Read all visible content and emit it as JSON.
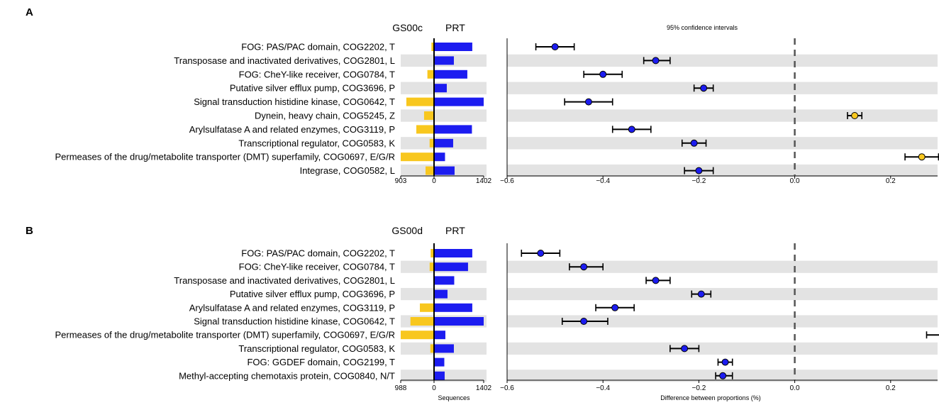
{
  "chart_data": [
    {
      "panel": "A",
      "type": "bar+errorbar",
      "left_header": "GS00c",
      "right_header": "PRT",
      "ci_title": "95% confidence intervals",
      "bar_ticks": {
        "left": "903",
        "zero": "0",
        "right": "1402"
      },
      "bar_range": {
        "left_max": 903,
        "right_max": 1402
      },
      "xlim": [
        -0.6,
        0.3
      ],
      "x_ticks": [
        -0.6,
        -0.4,
        -0.2,
        0.0,
        0.2
      ],
      "x_tick_labels": [
        "−0.6",
        "−0.4",
        "−0.2",
        "0.0",
        "0.2"
      ],
      "xlabel": "",
      "bar_xlabel": "",
      "colors": {
        "left": "#F8C71E",
        "right": "#1C1CF0",
        "row_band": "#E3E3E3"
      },
      "rows": [
        {
          "label": "FOG: PAS/PAC domain, COG2202, T",
          "left": 70,
          "right": 1080,
          "diff": -0.5,
          "ci": [
            -0.54,
            -0.46
          ]
        },
        {
          "label": "Transposase and inactivated derivatives, COG2801, L",
          "left": 15,
          "right": 560,
          "diff": -0.29,
          "ci": [
            -0.315,
            -0.26
          ]
        },
        {
          "label": "FOG: CheY-like receiver, COG0784, T",
          "left": 180,
          "right": 940,
          "diff": -0.4,
          "ci": [
            -0.44,
            -0.36
          ]
        },
        {
          "label": "Putative silver efflux pump, COG3696, P",
          "left": 10,
          "right": 360,
          "diff": -0.19,
          "ci": [
            -0.21,
            -0.17
          ]
        },
        {
          "label": "Signal transduction histidine kinase, COG0642, T",
          "left": 750,
          "right": 1402,
          "diff": -0.43,
          "ci": [
            -0.48,
            -0.38
          ]
        },
        {
          "label": "Dynein, heavy chain, COG5245, Z",
          "left": 270,
          "right": 0,
          "diff": 0.125,
          "ci": [
            0.11,
            0.14
          ]
        },
        {
          "label": "Arylsulfatase A and related enzymes, COG3119, P",
          "left": 480,
          "right": 1070,
          "diff": -0.34,
          "ci": [
            -0.38,
            -0.3
          ]
        },
        {
          "label": "Transcriptional regulator, COG0583, K",
          "left": 120,
          "right": 540,
          "diff": -0.21,
          "ci": [
            -0.235,
            -0.185
          ]
        },
        {
          "label": "Permeases of the drug/metabolite transporter (DMT) superfamily, COG0697, E/G/R",
          "left": 903,
          "right": 310,
          "diff": 0.265,
          "ci": [
            0.23,
            0.3
          ]
        },
        {
          "label": "Integrase, COG0582, L",
          "left": 230,
          "right": 580,
          "diff": -0.2,
          "ci": [
            -0.23,
            -0.17
          ]
        }
      ]
    },
    {
      "panel": "B",
      "type": "bar+errorbar",
      "left_header": "GS00d",
      "right_header": "PRT",
      "ci_title": "",
      "bar_ticks": {
        "left": "988",
        "zero": "0",
        "right": "1402"
      },
      "bar_range": {
        "left_max": 988,
        "right_max": 1402
      },
      "xlim": [
        -0.6,
        0.35
      ],
      "x_ticks": [
        -0.6,
        -0.4,
        -0.2,
        0.0,
        0.2
      ],
      "x_tick_labels": [
        "−0.6",
        "−0.4",
        "−0.2",
        "0.0",
        "0.2"
      ],
      "xlabel": "Difference between proportions (%)",
      "bar_xlabel": "Sequences",
      "colors": {
        "left": "#F8C71E",
        "right": "#1C1CF0",
        "row_band": "#E3E3E3"
      },
      "rows": [
        {
          "label": "FOG: PAS/PAC domain, COG2202, T",
          "left": 100,
          "right": 1080,
          "diff": -0.53,
          "ci": [
            -0.57,
            -0.49
          ]
        },
        {
          "label": "FOG: CheY-like receiver, COG0784, T",
          "left": 130,
          "right": 960,
          "diff": -0.44,
          "ci": [
            -0.47,
            -0.4
          ]
        },
        {
          "label": "Transposase and inactivated derivatives, COG2801, L",
          "left": 10,
          "right": 570,
          "diff": -0.29,
          "ci": [
            -0.31,
            -0.26
          ]
        },
        {
          "label": "Putative silver efflux pump, COG3696, P",
          "left": 5,
          "right": 380,
          "diff": -0.195,
          "ci": [
            -0.215,
            -0.175
          ]
        },
        {
          "label": "Arylsulfatase A and related enzymes, COG3119, P",
          "left": 420,
          "right": 1080,
          "diff": -0.375,
          "ci": [
            -0.415,
            -0.335
          ]
        },
        {
          "label": "Signal transduction histidine kinase, COG0642, T",
          "left": 700,
          "right": 1402,
          "diff": -0.44,
          "ci": [
            -0.485,
            -0.39
          ]
        },
        {
          "label": "Permeases of the drug/metabolite transporter (DMT) superfamily, COG0697, E/G/R",
          "left": 988,
          "right": 320,
          "diff": 0.31,
          "ci": [
            0.275,
            0.345
          ]
        },
        {
          "label": "Transcriptional regulator, COG0583, K",
          "left": 110,
          "right": 560,
          "diff": -0.23,
          "ci": [
            -0.26,
            -0.2
          ]
        },
        {
          "label": "FOG: GGDEF domain, COG2199, T",
          "left": 0,
          "right": 290,
          "diff": -0.145,
          "ci": [
            -0.16,
            -0.13
          ]
        },
        {
          "label": "Methyl-accepting chemotaxis protein, COG0840, N/T",
          "left": 0,
          "right": 300,
          "diff": -0.15,
          "ci": [
            -0.165,
            -0.13
          ]
        }
      ]
    }
  ]
}
